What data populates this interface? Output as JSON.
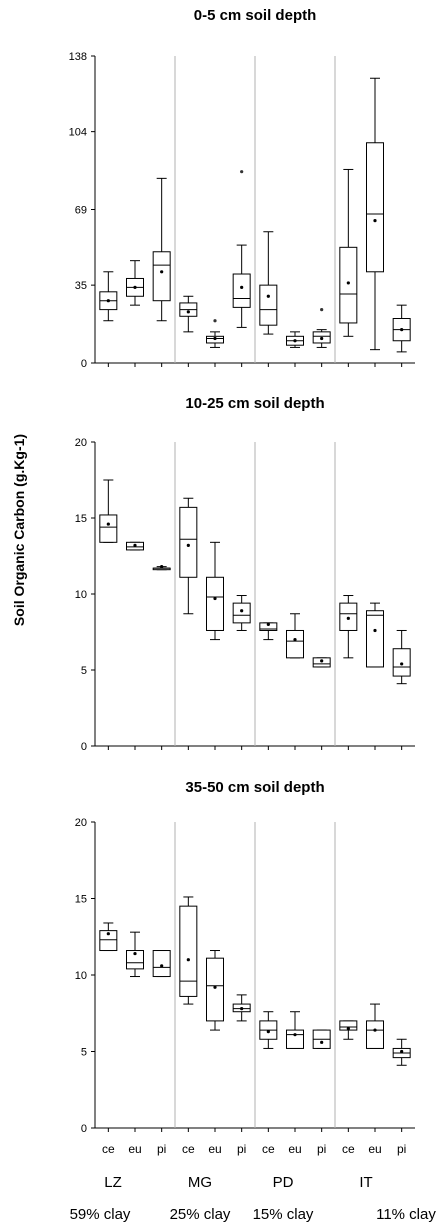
{
  "y_axis_label": "Soil Organic Carbon (g.Kg-1)",
  "sites": [
    {
      "name": "LZ",
      "clay": "59% clay"
    },
    {
      "name": "MG",
      "clay": "25% clay"
    },
    {
      "name": "PD",
      "clay": "15% clay"
    },
    {
      "name": "IT",
      "clay": "11% clay"
    }
  ],
  "species": [
    "ce",
    "eu",
    "pi"
  ],
  "chart_data": [
    {
      "type": "box",
      "title": "0-5 cm soil depth",
      "ylim": [
        0,
        138
      ],
      "yticks": [
        0,
        35,
        69,
        104,
        138
      ],
      "boxes": [
        {
          "site": "LZ",
          "species": "ce",
          "min": 19,
          "q1": 24,
          "median": 28,
          "q3": 32,
          "max": 41,
          "mean": 28,
          "outliers": []
        },
        {
          "site": "LZ",
          "species": "eu",
          "min": 26,
          "q1": 30,
          "median": 34,
          "q3": 38,
          "max": 46,
          "mean": 34,
          "outliers": []
        },
        {
          "site": "LZ",
          "species": "pi",
          "min": 19,
          "q1": 28,
          "median": 44,
          "q3": 50,
          "max": 83,
          "mean": 41,
          "outliers": []
        },
        {
          "site": "MG",
          "species": "ce",
          "min": 14,
          "q1": 21,
          "median": 24,
          "q3": 27,
          "max": 30,
          "mean": 23,
          "outliers": []
        },
        {
          "site": "MG",
          "species": "eu",
          "min": 7,
          "q1": 9,
          "median": 11,
          "q3": 12,
          "max": 14,
          "mean": 11,
          "outliers": [
            19
          ]
        },
        {
          "site": "MG",
          "species": "pi",
          "min": 16,
          "q1": 25,
          "median": 29,
          "q3": 40,
          "max": 53,
          "mean": 34,
          "outliers": [
            86
          ]
        },
        {
          "site": "PD",
          "species": "ce",
          "min": 13,
          "q1": 17,
          "median": 24,
          "q3": 35,
          "max": 59,
          "mean": 30,
          "outliers": []
        },
        {
          "site": "PD",
          "species": "eu",
          "min": 7,
          "q1": 8,
          "median": 10,
          "q3": 12,
          "max": 14,
          "mean": 10,
          "outliers": []
        },
        {
          "site": "PD",
          "species": "pi",
          "min": 7,
          "q1": 9,
          "median": 12,
          "q3": 14,
          "max": 15,
          "mean": 11,
          "outliers": [
            24
          ]
        },
        {
          "site": "IT",
          "species": "ce",
          "min": 12,
          "q1": 18,
          "median": 31,
          "q3": 52,
          "max": 87,
          "mean": 36,
          "outliers": []
        },
        {
          "site": "IT",
          "species": "eu",
          "min": 6,
          "q1": 41,
          "median": 67,
          "q3": 99,
          "max": 128,
          "mean": 64,
          "outliers": []
        },
        {
          "site": "IT",
          "species": "pi",
          "min": 5,
          "q1": 10,
          "median": 15,
          "q3": 20,
          "max": 26,
          "mean": 15,
          "outliers": []
        }
      ]
    },
    {
      "type": "box",
      "title": "10-25 cm soil depth",
      "ylim": [
        0,
        20
      ],
      "yticks": [
        0,
        5,
        10,
        15,
        20
      ],
      "boxes": [
        {
          "site": "LZ",
          "species": "ce",
          "min": 13.4,
          "q1": 13.4,
          "median": 14.4,
          "q3": 15.2,
          "max": 17.5,
          "mean": 14.6,
          "outliers": []
        },
        {
          "site": "LZ",
          "species": "eu",
          "min": 12.9,
          "q1": 12.9,
          "median": 13.1,
          "q3": 13.4,
          "max": 13.4,
          "mean": 13.2,
          "outliers": []
        },
        {
          "site": "LZ",
          "species": "pi",
          "min": 11.6,
          "q1": 11.6,
          "median": 11.7,
          "q3": 11.7,
          "max": 11.8,
          "mean": 11.8,
          "outliers": []
        },
        {
          "site": "MG",
          "species": "ce",
          "min": 8.7,
          "q1": 11.1,
          "median": 13.6,
          "q3": 15.7,
          "max": 16.3,
          "mean": 13.2,
          "outliers": []
        },
        {
          "site": "MG",
          "species": "eu",
          "min": 7.0,
          "q1": 7.6,
          "median": 9.8,
          "q3": 11.1,
          "max": 13.4,
          "mean": 9.7,
          "outliers": []
        },
        {
          "site": "MG",
          "species": "pi",
          "min": 7.6,
          "q1": 8.1,
          "median": 8.6,
          "q3": 9.4,
          "max": 9.9,
          "mean": 8.9,
          "outliers": []
        },
        {
          "site": "PD",
          "species": "ce",
          "min": 7.0,
          "q1": 7.6,
          "median": 7.7,
          "q3": 8.1,
          "max": 8.1,
          "mean": 8.0,
          "outliers": []
        },
        {
          "site": "PD",
          "species": "eu",
          "min": 5.8,
          "q1": 5.8,
          "median": 6.9,
          "q3": 7.6,
          "max": 8.7,
          "mean": 7.0,
          "outliers": []
        },
        {
          "site": "PD",
          "species": "pi",
          "min": 5.2,
          "q1": 5.2,
          "median": 5.4,
          "q3": 5.8,
          "max": 5.8,
          "mean": 5.6,
          "outliers": []
        },
        {
          "site": "IT",
          "species": "ce",
          "min": 5.8,
          "q1": 7.6,
          "median": 8.7,
          "q3": 9.4,
          "max": 9.9,
          "mean": 8.4,
          "outliers": []
        },
        {
          "site": "IT",
          "species": "eu",
          "min": 5.2,
          "q1": 5.2,
          "median": 8.6,
          "q3": 8.9,
          "max": 9.4,
          "mean": 7.6,
          "outliers": []
        },
        {
          "site": "IT",
          "species": "pi",
          "min": 4.1,
          "q1": 4.6,
          "median": 5.2,
          "q3": 6.4,
          "max": 7.6,
          "mean": 5.4,
          "outliers": []
        }
      ]
    },
    {
      "type": "box",
      "title": "35-50 cm soil depth",
      "ylim": [
        0,
        20
      ],
      "yticks": [
        0,
        5,
        10,
        15,
        20
      ],
      "boxes": [
        {
          "site": "LZ",
          "species": "ce",
          "min": 11.6,
          "q1": 11.6,
          "median": 12.3,
          "q3": 12.9,
          "max": 13.4,
          "mean": 12.7,
          "outliers": []
        },
        {
          "site": "LZ",
          "species": "eu",
          "min": 9.9,
          "q1": 10.4,
          "median": 10.8,
          "q3": 11.6,
          "max": 12.8,
          "mean": 11.4,
          "outliers": []
        },
        {
          "site": "LZ",
          "species": "pi",
          "min": 9.9,
          "q1": 9.9,
          "median": 10.5,
          "q3": 11.6,
          "max": 11.6,
          "mean": 10.6,
          "outliers": []
        },
        {
          "site": "MG",
          "species": "ce",
          "min": 8.1,
          "q1": 8.6,
          "median": 9.6,
          "q3": 14.5,
          "max": 15.1,
          "mean": 11.0,
          "outliers": []
        },
        {
          "site": "MG",
          "species": "eu",
          "min": 6.4,
          "q1": 7.0,
          "median": 9.3,
          "q3": 11.1,
          "max": 11.6,
          "mean": 9.2,
          "outliers": []
        },
        {
          "site": "MG",
          "species": "pi",
          "min": 7.0,
          "q1": 7.6,
          "median": 7.8,
          "q3": 8.1,
          "max": 8.7,
          "mean": 7.8,
          "outliers": []
        },
        {
          "site": "PD",
          "species": "ce",
          "min": 5.2,
          "q1": 5.8,
          "median": 6.4,
          "q3": 7.0,
          "max": 7.6,
          "mean": 6.3,
          "outliers": []
        },
        {
          "site": "PD",
          "species": "eu",
          "min": 5.2,
          "q1": 5.2,
          "median": 6.1,
          "q3": 6.4,
          "max": 7.6,
          "mean": 6.1,
          "outliers": []
        },
        {
          "site": "PD",
          "species": "pi",
          "min": 5.2,
          "q1": 5.2,
          "median": 5.8,
          "q3": 6.4,
          "max": 6.4,
          "mean": 5.6,
          "outliers": []
        },
        {
          "site": "IT",
          "species": "ce",
          "min": 5.8,
          "q1": 6.4,
          "median": 6.6,
          "q3": 7.0,
          "max": 7.0,
          "mean": 6.5,
          "outliers": []
        },
        {
          "site": "IT",
          "species": "eu",
          "min": 5.2,
          "q1": 5.2,
          "median": 6.4,
          "q3": 7.0,
          "max": 8.1,
          "mean": 6.4,
          "outliers": []
        },
        {
          "site": "IT",
          "species": "pi",
          "min": 4.1,
          "q1": 4.6,
          "median": 4.9,
          "q3": 5.2,
          "max": 5.8,
          "mean": 5.0,
          "outliers": []
        }
      ]
    }
  ]
}
